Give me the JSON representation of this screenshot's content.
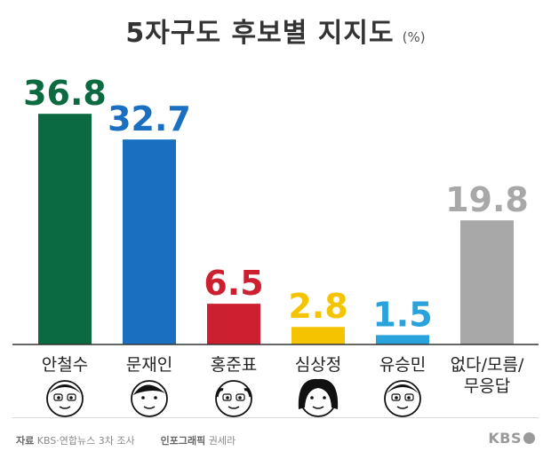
{
  "chart_data": {
    "type": "bar",
    "title": "5자구도 후보별 지지도",
    "unit": "(%)",
    "categories": [
      "안철수",
      "문재인",
      "홍준표",
      "심상정",
      "유승민",
      "없다/모름/\n무응답"
    ],
    "values": [
      36.8,
      32.7,
      6.5,
      2.8,
      1.5,
      19.8
    ],
    "colors": [
      "#0b6a3f",
      "#1a6fc1",
      "#cc2030",
      "#f4c400",
      "#2aa3dc",
      "#a8a8a8"
    ],
    "ylim": [
      0,
      40
    ],
    "grid": false,
    "legend": "none"
  },
  "footer": {
    "source_label": "자료",
    "source_text": "KBS·연합뉴스 3차 조사",
    "graphic_label": "인포그래픽",
    "graphic_text": "권세라",
    "brand": "KBS"
  }
}
